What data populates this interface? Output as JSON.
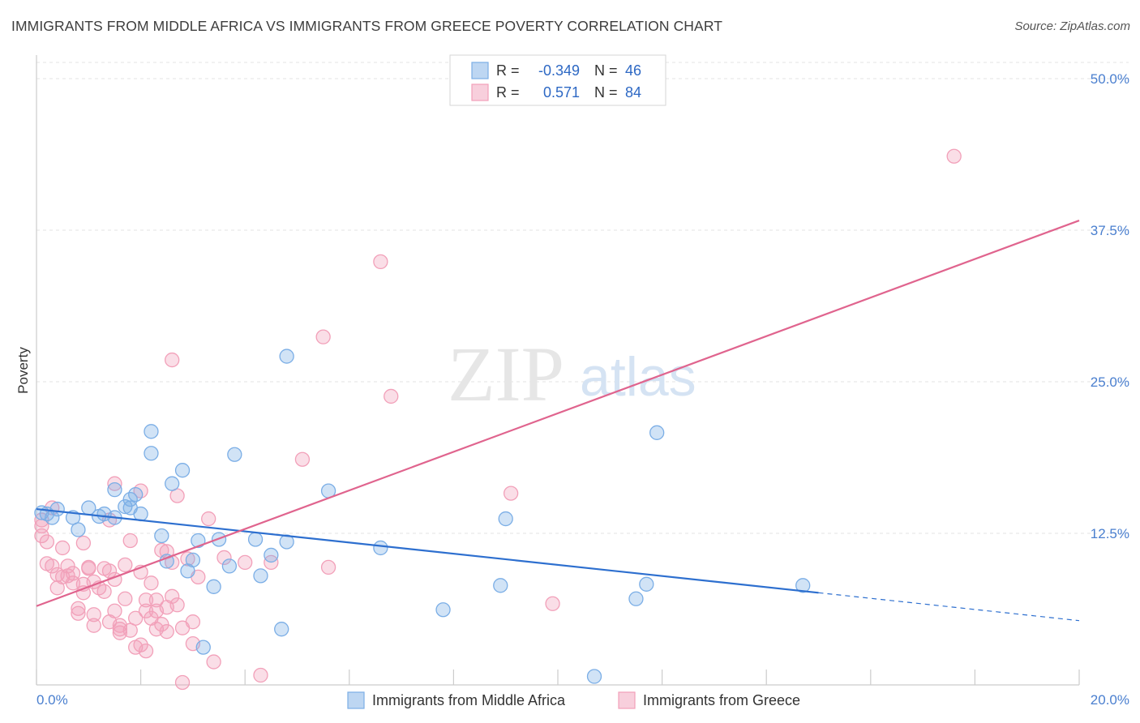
{
  "title": "IMMIGRANTS FROM MIDDLE AFRICA VS IMMIGRANTS FROM GREECE POVERTY CORRELATION CHART",
  "source": "Source: ZipAtlas.com",
  "watermark": {
    "zip": "ZIP",
    "atlas": "atlas"
  },
  "legend": {
    "r_label": "R =",
    "n_label": "N =",
    "rows": [
      {
        "r": "-0.349",
        "n": "46",
        "color": "#7baee6"
      },
      {
        "r": "0.571",
        "n": "84",
        "color": "#f2a0b9"
      }
    ]
  },
  "chart_data": {
    "type": "scatter",
    "title": "IMMIGRANTS FROM MIDDLE AFRICA VS IMMIGRANTS FROM GREECE POVERTY CORRELATION CHART",
    "xlabel": "",
    "ylabel": "Poverty",
    "xlim": [
      0,
      20
    ],
    "ylim": [
      0,
      50
    ],
    "x_ticks": [
      "0.0%",
      "20.0%"
    ],
    "y_ticks": [
      {
        "value": 12.5,
        "label": "12.5%"
      },
      {
        "value": 25.0,
        "label": "25.0%"
      },
      {
        "value": 37.5,
        "label": "37.5%"
      },
      {
        "value": 50.0,
        "label": "50.0%"
      }
    ],
    "grid": true,
    "legend_position": "bottom-center",
    "series": [
      {
        "name": "Immigrants from Middle Africa",
        "color": "#7baee6",
        "line_color": "#2d6fcf",
        "trend": {
          "x": [
            0.0,
            15.0
          ],
          "y": [
            14.5,
            7.6
          ],
          "dashed_to": [
            20.0,
            5.3
          ]
        },
        "points": [
          [
            0.1,
            14.2
          ],
          [
            0.3,
            13.8
          ],
          [
            0.4,
            14.5
          ],
          [
            0.2,
            14.1
          ],
          [
            0.7,
            13.8
          ],
          [
            0.8,
            12.8
          ],
          [
            1.0,
            14.6
          ],
          [
            1.2,
            13.9
          ],
          [
            1.3,
            14.1
          ],
          [
            1.5,
            16.1
          ],
          [
            1.5,
            13.8
          ],
          [
            1.7,
            14.7
          ],
          [
            1.8,
            14.6
          ],
          [
            1.8,
            15.3
          ],
          [
            1.9,
            15.7
          ],
          [
            2.0,
            14.1
          ],
          [
            2.2,
            20.9
          ],
          [
            2.2,
            19.1
          ],
          [
            2.4,
            12.3
          ],
          [
            2.5,
            10.2
          ],
          [
            2.6,
            16.6
          ],
          [
            2.8,
            17.7
          ],
          [
            2.9,
            9.4
          ],
          [
            3.0,
            10.3
          ],
          [
            3.1,
            11.9
          ],
          [
            3.2,
            3.1
          ],
          [
            3.4,
            8.1
          ],
          [
            3.5,
            12.0
          ],
          [
            3.7,
            9.8
          ],
          [
            3.8,
            19.0
          ],
          [
            4.2,
            12.0
          ],
          [
            4.3,
            9.0
          ],
          [
            4.5,
            10.7
          ],
          [
            4.8,
            27.1
          ],
          [
            4.7,
            4.6
          ],
          [
            4.8,
            11.8
          ],
          [
            5.6,
            16.0
          ],
          [
            6.6,
            11.3
          ],
          [
            7.8,
            6.2
          ],
          [
            8.9,
            8.2
          ],
          [
            9.0,
            13.7
          ],
          [
            10.7,
            0.7
          ],
          [
            11.5,
            7.1
          ],
          [
            11.7,
            8.3
          ],
          [
            11.9,
            20.8
          ],
          [
            14.7,
            8.2
          ]
        ]
      },
      {
        "name": "Immigrants from Greece",
        "color": "#f2a0b9",
        "line_color": "#e0648e",
        "trend": {
          "x": [
            0.0,
            20.0
          ],
          "y": [
            6.5,
            38.3
          ]
        },
        "points": [
          [
            0.1,
            13.6
          ],
          [
            0.1,
            13.1
          ],
          [
            0.1,
            12.3
          ],
          [
            0.2,
            11.8
          ],
          [
            0.3,
            14.6
          ],
          [
            0.2,
            10.0
          ],
          [
            0.3,
            9.8
          ],
          [
            0.4,
            9.1
          ],
          [
            0.4,
            8.0
          ],
          [
            0.5,
            11.3
          ],
          [
            0.5,
            8.9
          ],
          [
            0.6,
            9.8
          ],
          [
            0.6,
            9.0
          ],
          [
            0.7,
            9.2
          ],
          [
            0.7,
            8.4
          ],
          [
            0.8,
            6.3
          ],
          [
            0.8,
            5.9
          ],
          [
            0.9,
            11.7
          ],
          [
            0.9,
            7.6
          ],
          [
            1.0,
            9.6
          ],
          [
            1.0,
            9.7
          ],
          [
            0.9,
            8.3
          ],
          [
            1.1,
            5.8
          ],
          [
            1.1,
            4.9
          ],
          [
            1.1,
            8.5
          ],
          [
            1.2,
            8.0
          ],
          [
            1.3,
            9.6
          ],
          [
            1.3,
            7.7
          ],
          [
            1.4,
            9.4
          ],
          [
            1.4,
            5.2
          ],
          [
            1.4,
            13.6
          ],
          [
            1.5,
            16.6
          ],
          [
            1.5,
            8.7
          ],
          [
            1.5,
            6.1
          ],
          [
            1.6,
            4.6
          ],
          [
            1.6,
            4.3
          ],
          [
            1.6,
            4.9
          ],
          [
            1.7,
            9.9
          ],
          [
            1.7,
            7.1
          ],
          [
            1.8,
            11.9
          ],
          [
            1.8,
            4.5
          ],
          [
            1.9,
            3.1
          ],
          [
            1.9,
            5.5
          ],
          [
            2.0,
            16.0
          ],
          [
            2.0,
            3.3
          ],
          [
            2.0,
            9.3
          ],
          [
            2.1,
            2.8
          ],
          [
            2.1,
            7.0
          ],
          [
            2.1,
            6.1
          ],
          [
            2.2,
            8.4
          ],
          [
            2.2,
            5.5
          ],
          [
            2.3,
            4.6
          ],
          [
            2.3,
            7.0
          ],
          [
            2.3,
            6.1
          ],
          [
            2.4,
            5.0
          ],
          [
            2.4,
            11.1
          ],
          [
            2.5,
            4.4
          ],
          [
            2.5,
            6.4
          ],
          [
            2.6,
            26.8
          ],
          [
            2.5,
            11.0
          ],
          [
            2.6,
            10.1
          ],
          [
            2.6,
            7.3
          ],
          [
            2.7,
            15.6
          ],
          [
            2.7,
            6.6
          ],
          [
            2.8,
            4.7
          ],
          [
            2.8,
            0.2
          ],
          [
            2.9,
            10.4
          ],
          [
            3.0,
            3.4
          ],
          [
            3.0,
            5.2
          ],
          [
            3.1,
            8.9
          ],
          [
            3.3,
            13.7
          ],
          [
            3.4,
            1.9
          ],
          [
            3.6,
            10.5
          ],
          [
            4.0,
            10.1
          ],
          [
            4.3,
            0.8
          ],
          [
            4.5,
            10.1
          ],
          [
            5.1,
            18.6
          ],
          [
            5.5,
            28.7
          ],
          [
            5.6,
            9.7
          ],
          [
            6.6,
            34.9
          ],
          [
            6.8,
            23.8
          ],
          [
            9.9,
            6.7
          ],
          [
            9.1,
            15.8
          ],
          [
            17.6,
            43.6
          ]
        ]
      }
    ]
  }
}
